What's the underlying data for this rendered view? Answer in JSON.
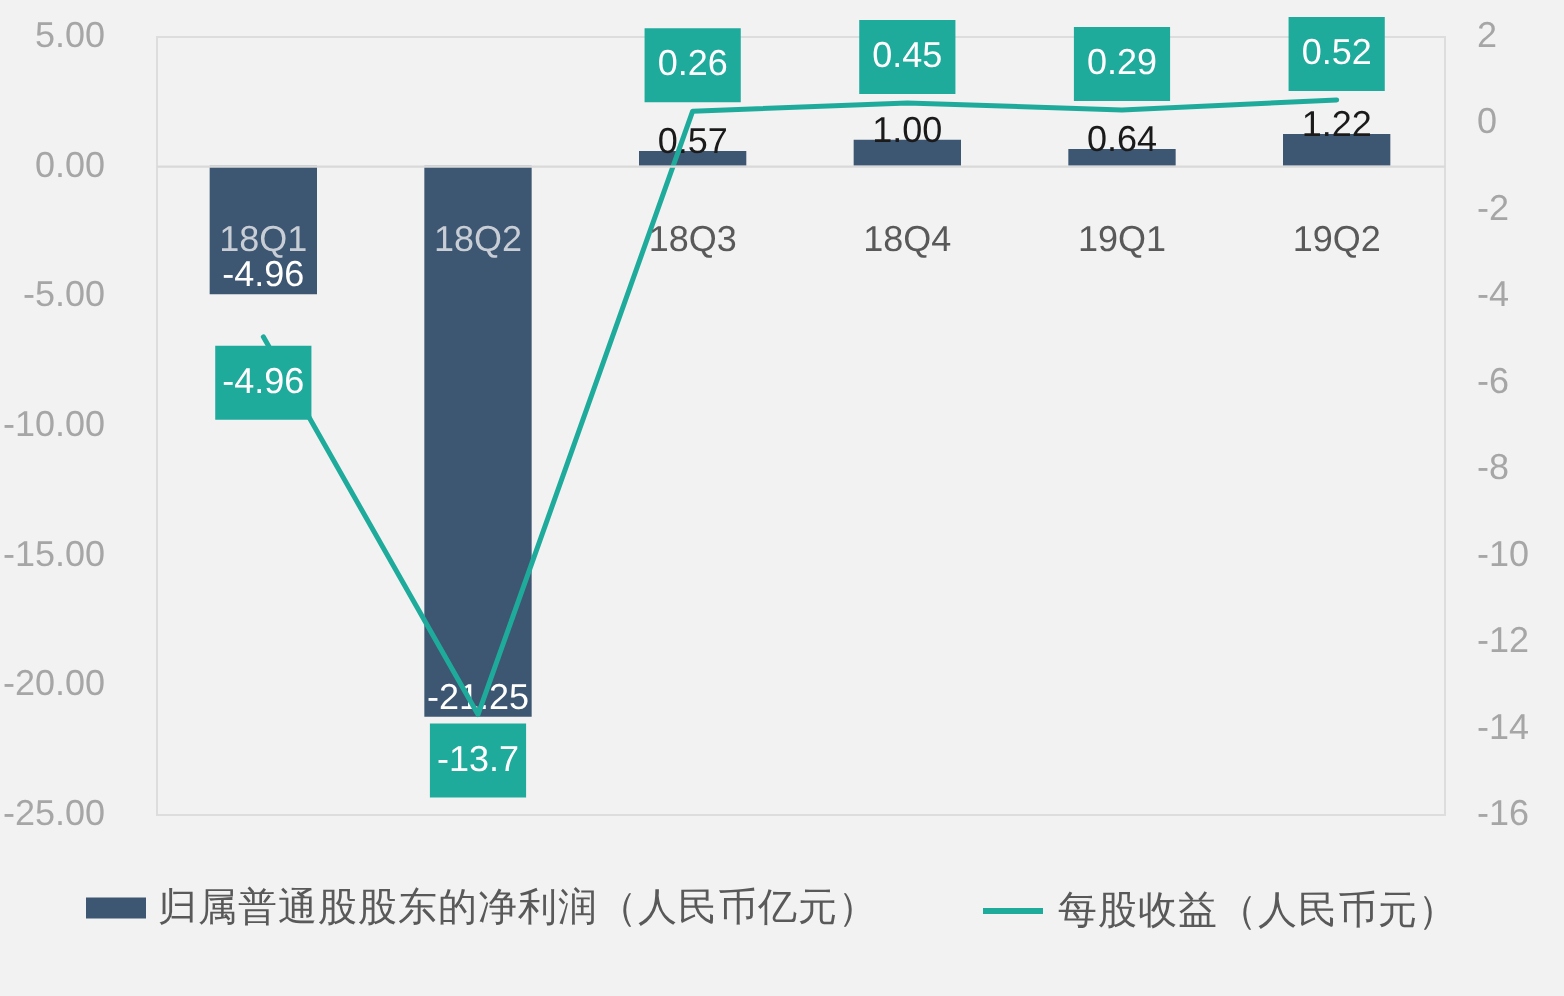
{
  "chart_data": {
    "type": "bar",
    "categories": [
      "18Q1",
      "18Q2",
      "18Q3",
      "18Q4",
      "19Q1",
      "19Q2"
    ],
    "series": [
      {
        "name": "归属普通股股东的净利润（人民币亿元）",
        "color": "#3d5671",
        "values": [
          -4.96,
          -21.25,
          0.57,
          1.0,
          0.64,
          1.22
        ],
        "value_labels": [
          "-4.96",
          "-21.25",
          "0.57",
          "1.00",
          "0.64",
          "1.22"
        ]
      },
      {
        "name": "每股收益（人民币元）",
        "type": "line",
        "axis": "y2",
        "color": "#1fab9c",
        "values": [
          -4.96,
          -13.7,
          0.26,
          0.45,
          0.29,
          0.52
        ],
        "value_labels": [
          "-4.96",
          "-13.7",
          "0.26",
          "0.45",
          "0.29",
          "0.52"
        ]
      }
    ],
    "ylim": [
      -25,
      5
    ],
    "yticks": [
      {
        "value": -25,
        "label": "-25.00"
      },
      {
        "value": -20,
        "label": "-20.00"
      },
      {
        "value": -15,
        "label": "-15.00"
      },
      {
        "value": -10,
        "label": "-10.00"
      },
      {
        "value": -5,
        "label": "-5.00"
      },
      {
        "value": 0,
        "label": "0.00"
      },
      {
        "value": 5,
        "label": "5.00"
      }
    ],
    "y2lim": [
      -16,
      2
    ],
    "y2ticks": [
      -16,
      -14,
      -12,
      -10,
      -8,
      -6,
      -4,
      -2,
      0,
      2
    ],
    "legend": "bottom",
    "marker": "none",
    "line_style": "solid"
  }
}
